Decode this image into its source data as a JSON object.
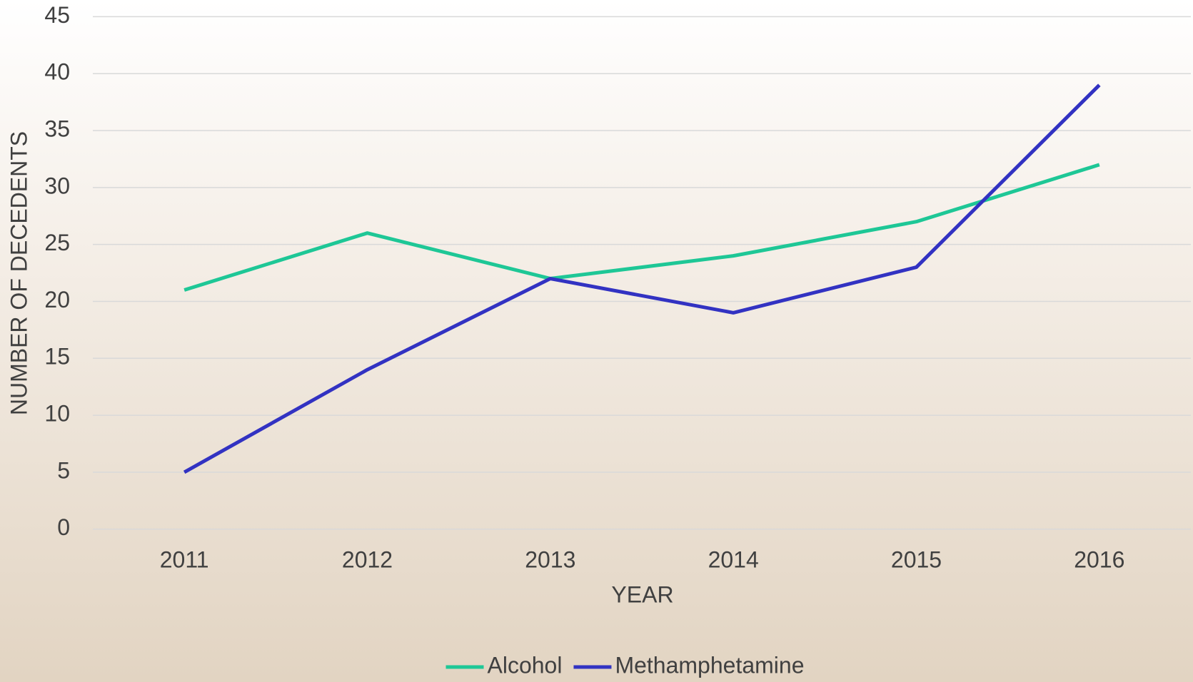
{
  "chart_data": {
    "type": "line",
    "x_label": "YEAR",
    "y_label": "NUMBER OF DECEDENTS",
    "categories": [
      "2011",
      "2012",
      "2013",
      "2014",
      "2015",
      "2016"
    ],
    "series": [
      {
        "name": "Alcohol",
        "color": "#1ec796",
        "values": [
          21,
          26,
          22,
          24,
          27,
          32
        ]
      },
      {
        "name": "Methamphetamine",
        "color": "#3232c2",
        "values": [
          5,
          14,
          22,
          19,
          23,
          39
        ]
      }
    ],
    "ylim": [
      0,
      45
    ],
    "yticks": [
      0,
      5,
      10,
      15,
      20,
      25,
      30,
      35,
      40,
      45
    ],
    "grid": true,
    "legend": "bottom"
  }
}
